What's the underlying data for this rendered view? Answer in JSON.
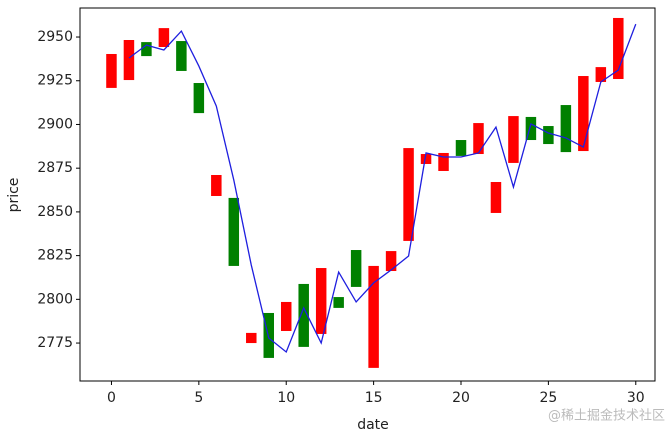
{
  "chart_data": {
    "type": "candle-line",
    "xlabel": "date",
    "ylabel": "price",
    "watermark": "@稀土掘金技术社区",
    "x": [
      0,
      1,
      2,
      3,
      4,
      5,
      6,
      7,
      8,
      9,
      10,
      11,
      12,
      13,
      14,
      15,
      16,
      17,
      18,
      19,
      20,
      21,
      22,
      23,
      24,
      25,
      26,
      27,
      28,
      29
    ],
    "bar_bottom": [
      2920.9,
      2925.4,
      2939.1,
      2944.3,
      2930.6,
      2906.5,
      2859.1,
      2819.1,
      2775.0,
      2766.5,
      2781.9,
      2772.8,
      2780.2,
      2795.1,
      2807.1,
      2760.8,
      2816.2,
      2833.4,
      2877.4,
      2873.4,
      2882.0,
      2883.1,
      2849.4,
      2878.0,
      2891.1,
      2888.8,
      2884.2,
      2884.8,
      2924.3,
      2926.0
    ],
    "bar_top": [
      2940.3,
      2948.3,
      2947.1,
      2955.1,
      2947.7,
      2923.7,
      2871.1,
      2858.0,
      2780.8,
      2792.2,
      2798.5,
      2808.8,
      2817.9,
      2801.3,
      2828.2,
      2819.1,
      2827.6,
      2886.5,
      2883.1,
      2883.7,
      2891.1,
      2900.8,
      2867.1,
      2904.8,
      2904.3,
      2899.1,
      2911.1,
      2927.7,
      2932.8,
      2960.9
    ],
    "bar_colors": [
      "red",
      "red",
      "green",
      "red",
      "green",
      "green",
      "red",
      "green",
      "red",
      "green",
      "red",
      "green",
      "red",
      "green",
      "green",
      "red",
      "red",
      "red",
      "red",
      "red",
      "green",
      "red",
      "red",
      "red",
      "green",
      "green",
      "green",
      "red",
      "red",
      "red"
    ],
    "line": {
      "color": "#1f1fdf",
      "x": [
        0,
        1,
        2,
        3,
        4,
        5,
        6,
        7,
        8,
        9,
        10,
        11,
        12,
        13,
        14,
        15,
        16,
        17,
        18,
        19,
        20,
        21,
        22,
        23,
        24,
        25,
        26,
        27,
        28,
        29,
        30
      ],
      "values": [
        null,
        2938.0,
        2945.4,
        2942.6,
        2953.4,
        2933.4,
        2910.5,
        2868.2,
        2819.6,
        2777.9,
        2769.9,
        2795.1,
        2775.0,
        2815.6,
        2798.5,
        2809.4,
        2816.8,
        2824.8,
        2883.7,
        2881.4,
        2881.4,
        2883.7,
        2898.5,
        2864.2,
        2900.3,
        2895.1,
        2892.3,
        2887.1,
        2924.3,
        2931.1,
        2957.4
      ]
    },
    "xlim": [
      -1.8,
      31.1
    ],
    "ylim": [
      2753.3,
      2966.6
    ],
    "xticks": [
      0,
      5,
      10,
      15,
      20,
      25,
      30
    ],
    "yticks": [
      2775,
      2800,
      2825,
      2850,
      2875,
      2900,
      2925,
      2950
    ]
  }
}
